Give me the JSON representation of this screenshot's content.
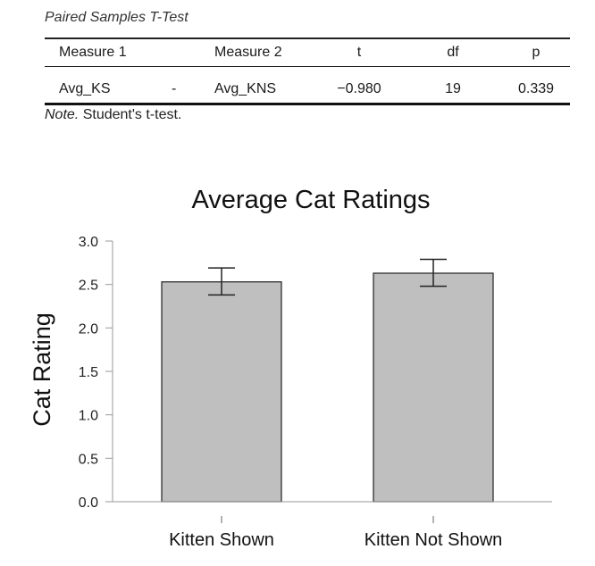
{
  "table": {
    "title": "Paired Samples T-Test",
    "headers": [
      "Measure 1",
      "",
      "Measure 2",
      "t",
      "df",
      "p"
    ],
    "rows": [
      [
        "Avg_KS",
        "-",
        "Avg_KNS",
        "−0.980",
        "19",
        "0.339"
      ]
    ],
    "note_label": "Note.",
    "note_text": " Student's t-test."
  },
  "chart_data": {
    "type": "bar",
    "title": "Average Cat Ratings",
    "xlabel": "",
    "ylabel": "Cat Rating",
    "categories": [
      "Kitten Shown",
      "Kitten Not Shown"
    ],
    "values": [
      2.53,
      2.63
    ],
    "error_low": [
      2.38,
      2.48
    ],
    "error_high": [
      2.69,
      2.79
    ],
    "ylim": [
      0,
      3.0
    ],
    "yticks": [
      "0.0",
      "0.5",
      "1.0",
      "1.5",
      "2.0",
      "2.5",
      "3.0"
    ],
    "grid": false,
    "bar_color": "#bfbfbf"
  }
}
